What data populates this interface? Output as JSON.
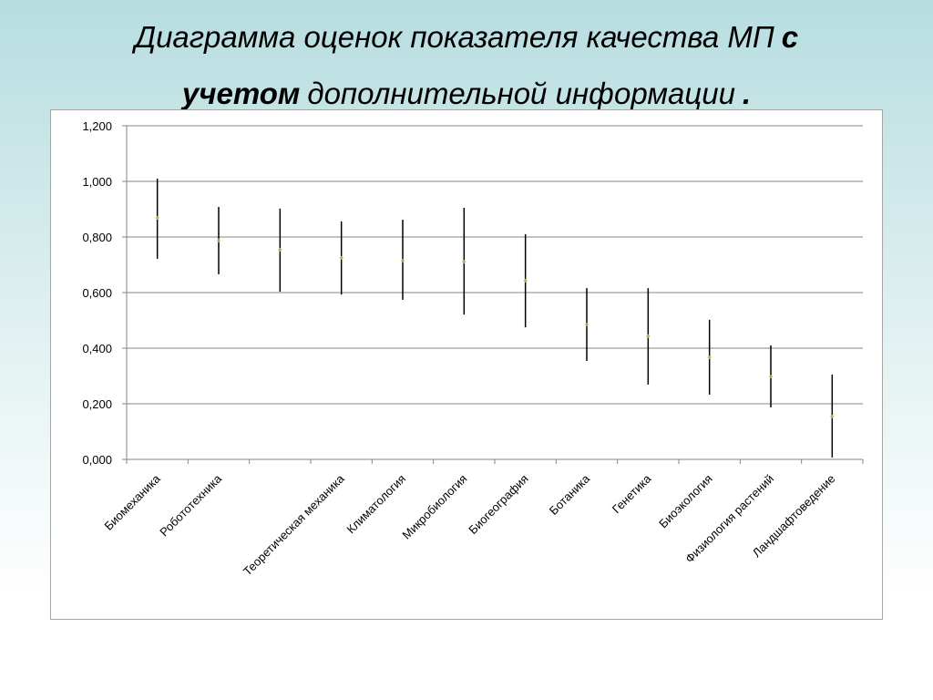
{
  "chart_data": {
    "type": "errorbar",
    "title": [
      {
        "text": "Диаграмма оценок показателя качества МП",
        "bold": false
      },
      {
        "text": "с",
        "bold": true
      },
      {
        "text": "учетом",
        "bold": true
      },
      {
        "text": "дополнительной информации",
        "bold": false
      },
      {
        "text": ".",
        "bold": true
      }
    ],
    "categories": [
      "Биомеханика",
      "Робототехника",
      null,
      "Теоретическая механика",
      "Климатология",
      "Микробиология",
      "Биогеография",
      "Ботаника",
      "Генетика",
      "Биоэкология",
      "Физиология растений",
      "Ландшафтоведение"
    ],
    "values": [
      0.869,
      0.787,
      0.754,
      0.725,
      0.715,
      0.711,
      0.643,
      0.485,
      0.443,
      0.367,
      0.298,
      0.154
    ],
    "low": [
      0.721,
      0.666,
      0.603,
      0.593,
      0.574,
      0.521,
      0.475,
      0.354,
      0.269,
      0.233,
      0.187,
      0.007
    ],
    "high": [
      1.01,
      0.908,
      0.902,
      0.856,
      0.862,
      0.905,
      0.81,
      0.616,
      0.616,
      0.502,
      0.41,
      0.305
    ],
    "color": "#000000",
    "marker_color": "#9bbb59",
    "ylim": [
      0,
      1.2
    ],
    "yticks": [
      {
        "value": 0,
        "label": "0,000"
      },
      {
        "value": 0.2,
        "label": "0,200"
      },
      {
        "value": 0.4,
        "label": "0,400"
      },
      {
        "value": 0.6,
        "label": "0,600"
      },
      {
        "value": 0.8,
        "label": "0,800"
      },
      {
        "value": 1.0,
        "label": "1,000"
      },
      {
        "value": 1.2,
        "label": "1,200"
      }
    ],
    "grid": true
  }
}
